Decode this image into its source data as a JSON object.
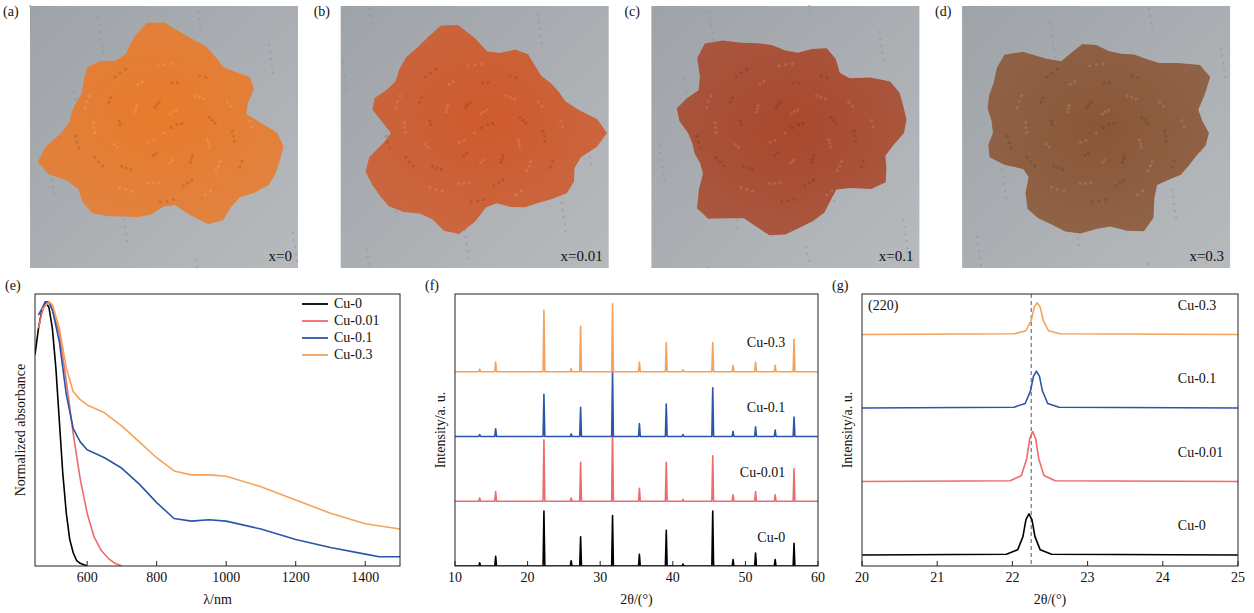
{
  "panels": [
    {
      "label": "(a)",
      "caption": "x=0",
      "color": "#e97a2b"
    },
    {
      "label": "(b)",
      "caption": "x=0.01",
      "color": "#cf5a2c"
    },
    {
      "label": "(c)",
      "caption": "x=0.1",
      "color": "#a9482c"
    },
    {
      "label": "(d)",
      "caption": "x=0.3",
      "color": "#8b5636"
    }
  ],
  "chart_data": [
    {
      "type": "line",
      "panel": "(e)",
      "x_label": "λ/nm",
      "y_label": "Normalized absorbance",
      "xlim": [
        450,
        1500
      ],
      "xticks": [
        600,
        800,
        1000,
        1200,
        1400
      ],
      "ylim": [
        0,
        1.03
      ],
      "tick_labels": "x",
      "legend": "top-right",
      "series": [
        {
          "name": "Cu-0",
          "color": "#000000",
          "x": [
            450,
            460,
            470,
            480,
            490,
            500,
            510,
            520,
            530,
            540,
            550,
            560,
            570,
            580,
            600
          ],
          "values": [
            0.8,
            0.9,
            0.97,
            1.0,
            0.98,
            0.9,
            0.75,
            0.55,
            0.35,
            0.2,
            0.1,
            0.05,
            0.02,
            0.01,
            0
          ]
        },
        {
          "name": "Cu-0.01",
          "color": "#ef6a6a",
          "x": [
            460,
            470,
            480,
            490,
            500,
            520,
            540,
            560,
            580,
            600,
            620,
            640,
            660,
            680,
            700
          ],
          "values": [
            0.9,
            0.96,
            0.99,
            1.0,
            0.97,
            0.88,
            0.7,
            0.5,
            0.33,
            0.2,
            0.11,
            0.06,
            0.03,
            0.01,
            0
          ]
        },
        {
          "name": "Cu-0.1",
          "color": "#2a55a8",
          "x": [
            460,
            480,
            490,
            500,
            520,
            540,
            560,
            580,
            600,
            650,
            700,
            750,
            800,
            850,
            900,
            950,
            1000,
            1100,
            1200,
            1300,
            1400,
            1440,
            1500
          ],
          "values": [
            0.95,
            1.0,
            1.0,
            0.97,
            0.85,
            0.65,
            0.52,
            0.47,
            0.44,
            0.41,
            0.37,
            0.31,
            0.24,
            0.18,
            0.17,
            0.175,
            0.17,
            0.14,
            0.1,
            0.07,
            0.045,
            0.035,
            0.035
          ]
        },
        {
          "name": "Cu-0.3",
          "color": "#f5a25a",
          "x": [
            470,
            490,
            500,
            520,
            540,
            560,
            580,
            600,
            650,
            700,
            750,
            800,
            850,
            900,
            950,
            1000,
            1100,
            1200,
            1300,
            1400,
            1500
          ],
          "values": [
            0.97,
            1.0,
            0.99,
            0.9,
            0.75,
            0.66,
            0.63,
            0.61,
            0.58,
            0.53,
            0.47,
            0.41,
            0.36,
            0.345,
            0.345,
            0.34,
            0.3,
            0.25,
            0.2,
            0.16,
            0.14
          ]
        }
      ]
    },
    {
      "type": "line",
      "panel": "(f)",
      "x_label": "2θ/(°)",
      "y_label": "Intensity/a. u.",
      "xlim": [
        10,
        60
      ],
      "xticks": [
        10,
        20,
        30,
        40,
        50,
        60
      ],
      "ylim": [
        0,
        4.2
      ],
      "tick_labels": "x",
      "legend": "on-curves",
      "x": [
        10,
        13.28,
        13.4,
        13.52,
        15.48,
        15.6,
        15.72,
        22.13,
        22.25,
        22.37,
        25.88,
        26.0,
        26.12,
        27.18,
        27.3,
        27.42,
        31.58,
        31.7,
        31.82,
        35.28,
        35.4,
        35.52,
        38.98,
        39.1,
        39.22,
        41.28,
        41.4,
        41.52,
        45.38,
        45.5,
        45.62,
        48.18,
        48.3,
        48.42,
        51.28,
        51.4,
        51.52,
        53.98,
        54.1,
        54.22,
        56.58,
        56.7,
        56.82,
        60
      ],
      "series": [
        {
          "name": "Cu-0",
          "color": "#000000",
          "values": [
            0,
            0,
            0.05,
            0,
            0,
            0.15,
            0,
            0,
            0.85,
            0,
            0,
            0.08,
            0,
            0,
            0.45,
            0,
            0,
            0.78,
            0,
            0,
            0.18,
            0,
            0,
            0.55,
            0,
            0,
            0.03,
            0,
            0,
            0.85,
            0,
            0,
            0.1,
            0,
            0,
            0.2,
            0,
            0,
            0.1,
            0,
            0,
            0.35,
            0,
            0
          ]
        },
        {
          "name": "Cu-0.01",
          "color": "#ef6a6a",
          "values": [
            1,
            1,
            1.05,
            1,
            1,
            1.15,
            1,
            1,
            1.95,
            1,
            1,
            1.05,
            1,
            1,
            1.6,
            1,
            1,
            2.1,
            1,
            1,
            1.2,
            1,
            1,
            1.6,
            1,
            1,
            1.03,
            1,
            1,
            1.7,
            1,
            1,
            1.1,
            1,
            1,
            1.15,
            1,
            1,
            1.1,
            1,
            1,
            1.5,
            1,
            1
          ]
        },
        {
          "name": "Cu-0.1",
          "color": "#2a55a8",
          "values": [
            2,
            2,
            2.03,
            2,
            2,
            2.12,
            2,
            2,
            2.65,
            2,
            2,
            2.04,
            2,
            2,
            2.45,
            2,
            2,
            3.0,
            2,
            2,
            2.2,
            2,
            2,
            2.5,
            2,
            2,
            2.03,
            2,
            2,
            2.75,
            2,
            2,
            2.08,
            2,
            2,
            2.15,
            2,
            2,
            2.1,
            2,
            2,
            2.3,
            2,
            2
          ]
        },
        {
          "name": "Cu-0.3",
          "color": "#f5a25a",
          "values": [
            3,
            3,
            3.04,
            3,
            3,
            3.15,
            3,
            3,
            3.95,
            3,
            3,
            3.05,
            3,
            3,
            3.7,
            3,
            3,
            4.05,
            3,
            3,
            3.15,
            3,
            3,
            3.45,
            3,
            3,
            3.03,
            3,
            3,
            3.45,
            3,
            3,
            3.1,
            3,
            3,
            3.15,
            3,
            3,
            3.1,
            3,
            3,
            3.5,
            3,
            3
          ]
        }
      ]
    },
    {
      "type": "line",
      "panel": "(g)",
      "x_label": "2θ/(°)",
      "y_label": "Intensity/a. u.",
      "annotation": "(220)",
      "vline": 22.25,
      "xlim": [
        20,
        25
      ],
      "xticks": [
        20,
        21,
        22,
        23,
        24,
        25
      ],
      "ylim": [
        -0.15,
        3.55
      ],
      "tick_labels": "x",
      "legend": "on-curves",
      "series": [
        {
          "name": "Cu-0",
          "color": "#000000",
          "x": [
            20,
            21.92,
            22.07,
            22.14,
            22.18,
            22.22,
            22.26,
            22.3,
            22.37,
            22.52,
            25
          ],
          "values": [
            0,
            0.01,
            0.07,
            0.25,
            0.48,
            0.56,
            0.48,
            0.25,
            0.07,
            0.01,
            0
          ]
        },
        {
          "name": "Cu-0.01",
          "color": "#ef6a6a",
          "x": [
            20,
            21.97,
            22.12,
            22.19,
            22.23,
            22.27,
            22.31,
            22.35,
            22.42,
            22.57,
            25
          ],
          "values": [
            1,
            1.01,
            1.08,
            1.31,
            1.58,
            1.68,
            1.58,
            1.31,
            1.08,
            1.01,
            1
          ]
        },
        {
          "name": "Cu-0.1",
          "color": "#2a55a8",
          "x": [
            20,
            22.02,
            22.17,
            22.24,
            22.28,
            22.32,
            22.36,
            22.4,
            22.47,
            22.62,
            25
          ],
          "values": [
            2,
            2.01,
            2.06,
            2.23,
            2.43,
            2.5,
            2.43,
            2.23,
            2.06,
            2.01,
            2
          ]
        },
        {
          "name": "Cu-0.3",
          "color": "#f5a25a",
          "x": [
            20,
            22.03,
            22.18,
            22.25,
            22.29,
            22.33,
            22.37,
            22.41,
            22.48,
            22.63,
            25
          ],
          "values": [
            3,
            3.01,
            3.05,
            3.19,
            3.37,
            3.43,
            3.37,
            3.19,
            3.05,
            3.01,
            3
          ]
        }
      ]
    }
  ]
}
